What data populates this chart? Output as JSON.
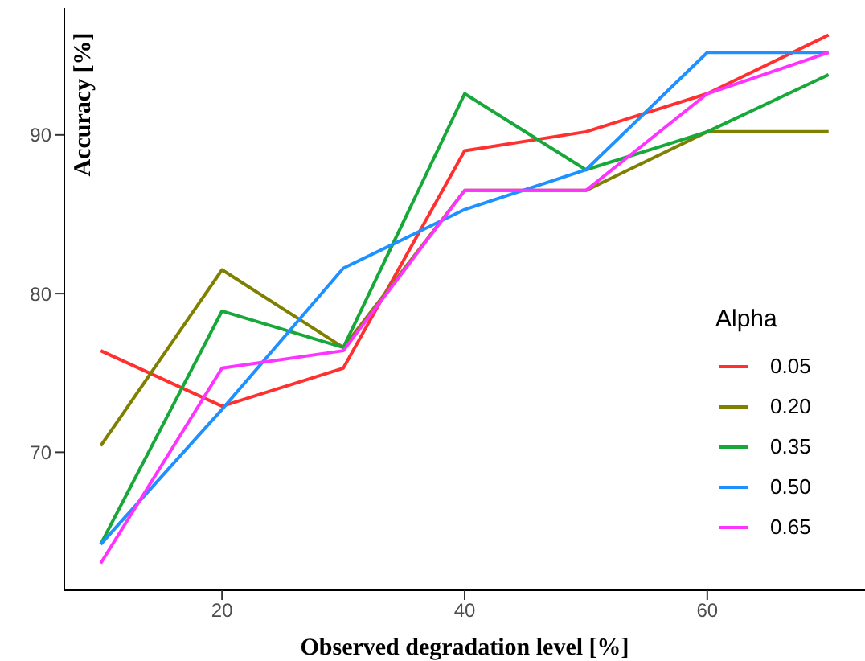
{
  "chart_data": {
    "type": "line",
    "xlabel": "Observed degradation level [%]",
    "ylabel": "Accuracy [%]",
    "legend_title": "Alpha",
    "x": [
      10,
      20,
      30,
      40,
      50,
      60,
      70
    ],
    "series": [
      {
        "name": "0.05",
        "color": "#ff3030",
        "values": [
          76.4,
          72.9,
          75.3,
          89.0,
          90.2,
          92.6,
          96.3
        ]
      },
      {
        "name": "0.20",
        "color": "#7f7f00",
        "values": [
          70.4,
          81.5,
          76.6,
          86.5,
          86.5,
          90.2,
          90.2
        ]
      },
      {
        "name": "0.35",
        "color": "#18a83a",
        "values": [
          64.2,
          78.9,
          76.6,
          92.6,
          87.8,
          90.2,
          93.8
        ]
      },
      {
        "name": "0.50",
        "color": "#1e90ff",
        "values": [
          64.2,
          72.7,
          81.6,
          85.3,
          87.8,
          95.2,
          95.2
        ]
      },
      {
        "name": "0.65",
        "color": "#ff33ff",
        "values": [
          63.0,
          75.3,
          76.4,
          86.5,
          86.5,
          92.6,
          95.2
        ]
      }
    ],
    "xlim": [
      7,
      73
    ],
    "xticks": [
      20,
      40,
      60
    ],
    "ylim": [
      61.3,
      98
    ],
    "yticks": [
      70,
      80,
      90
    ],
    "grid": false,
    "legend": "bottom right",
    "marker": "none",
    "line_style": "solid"
  }
}
